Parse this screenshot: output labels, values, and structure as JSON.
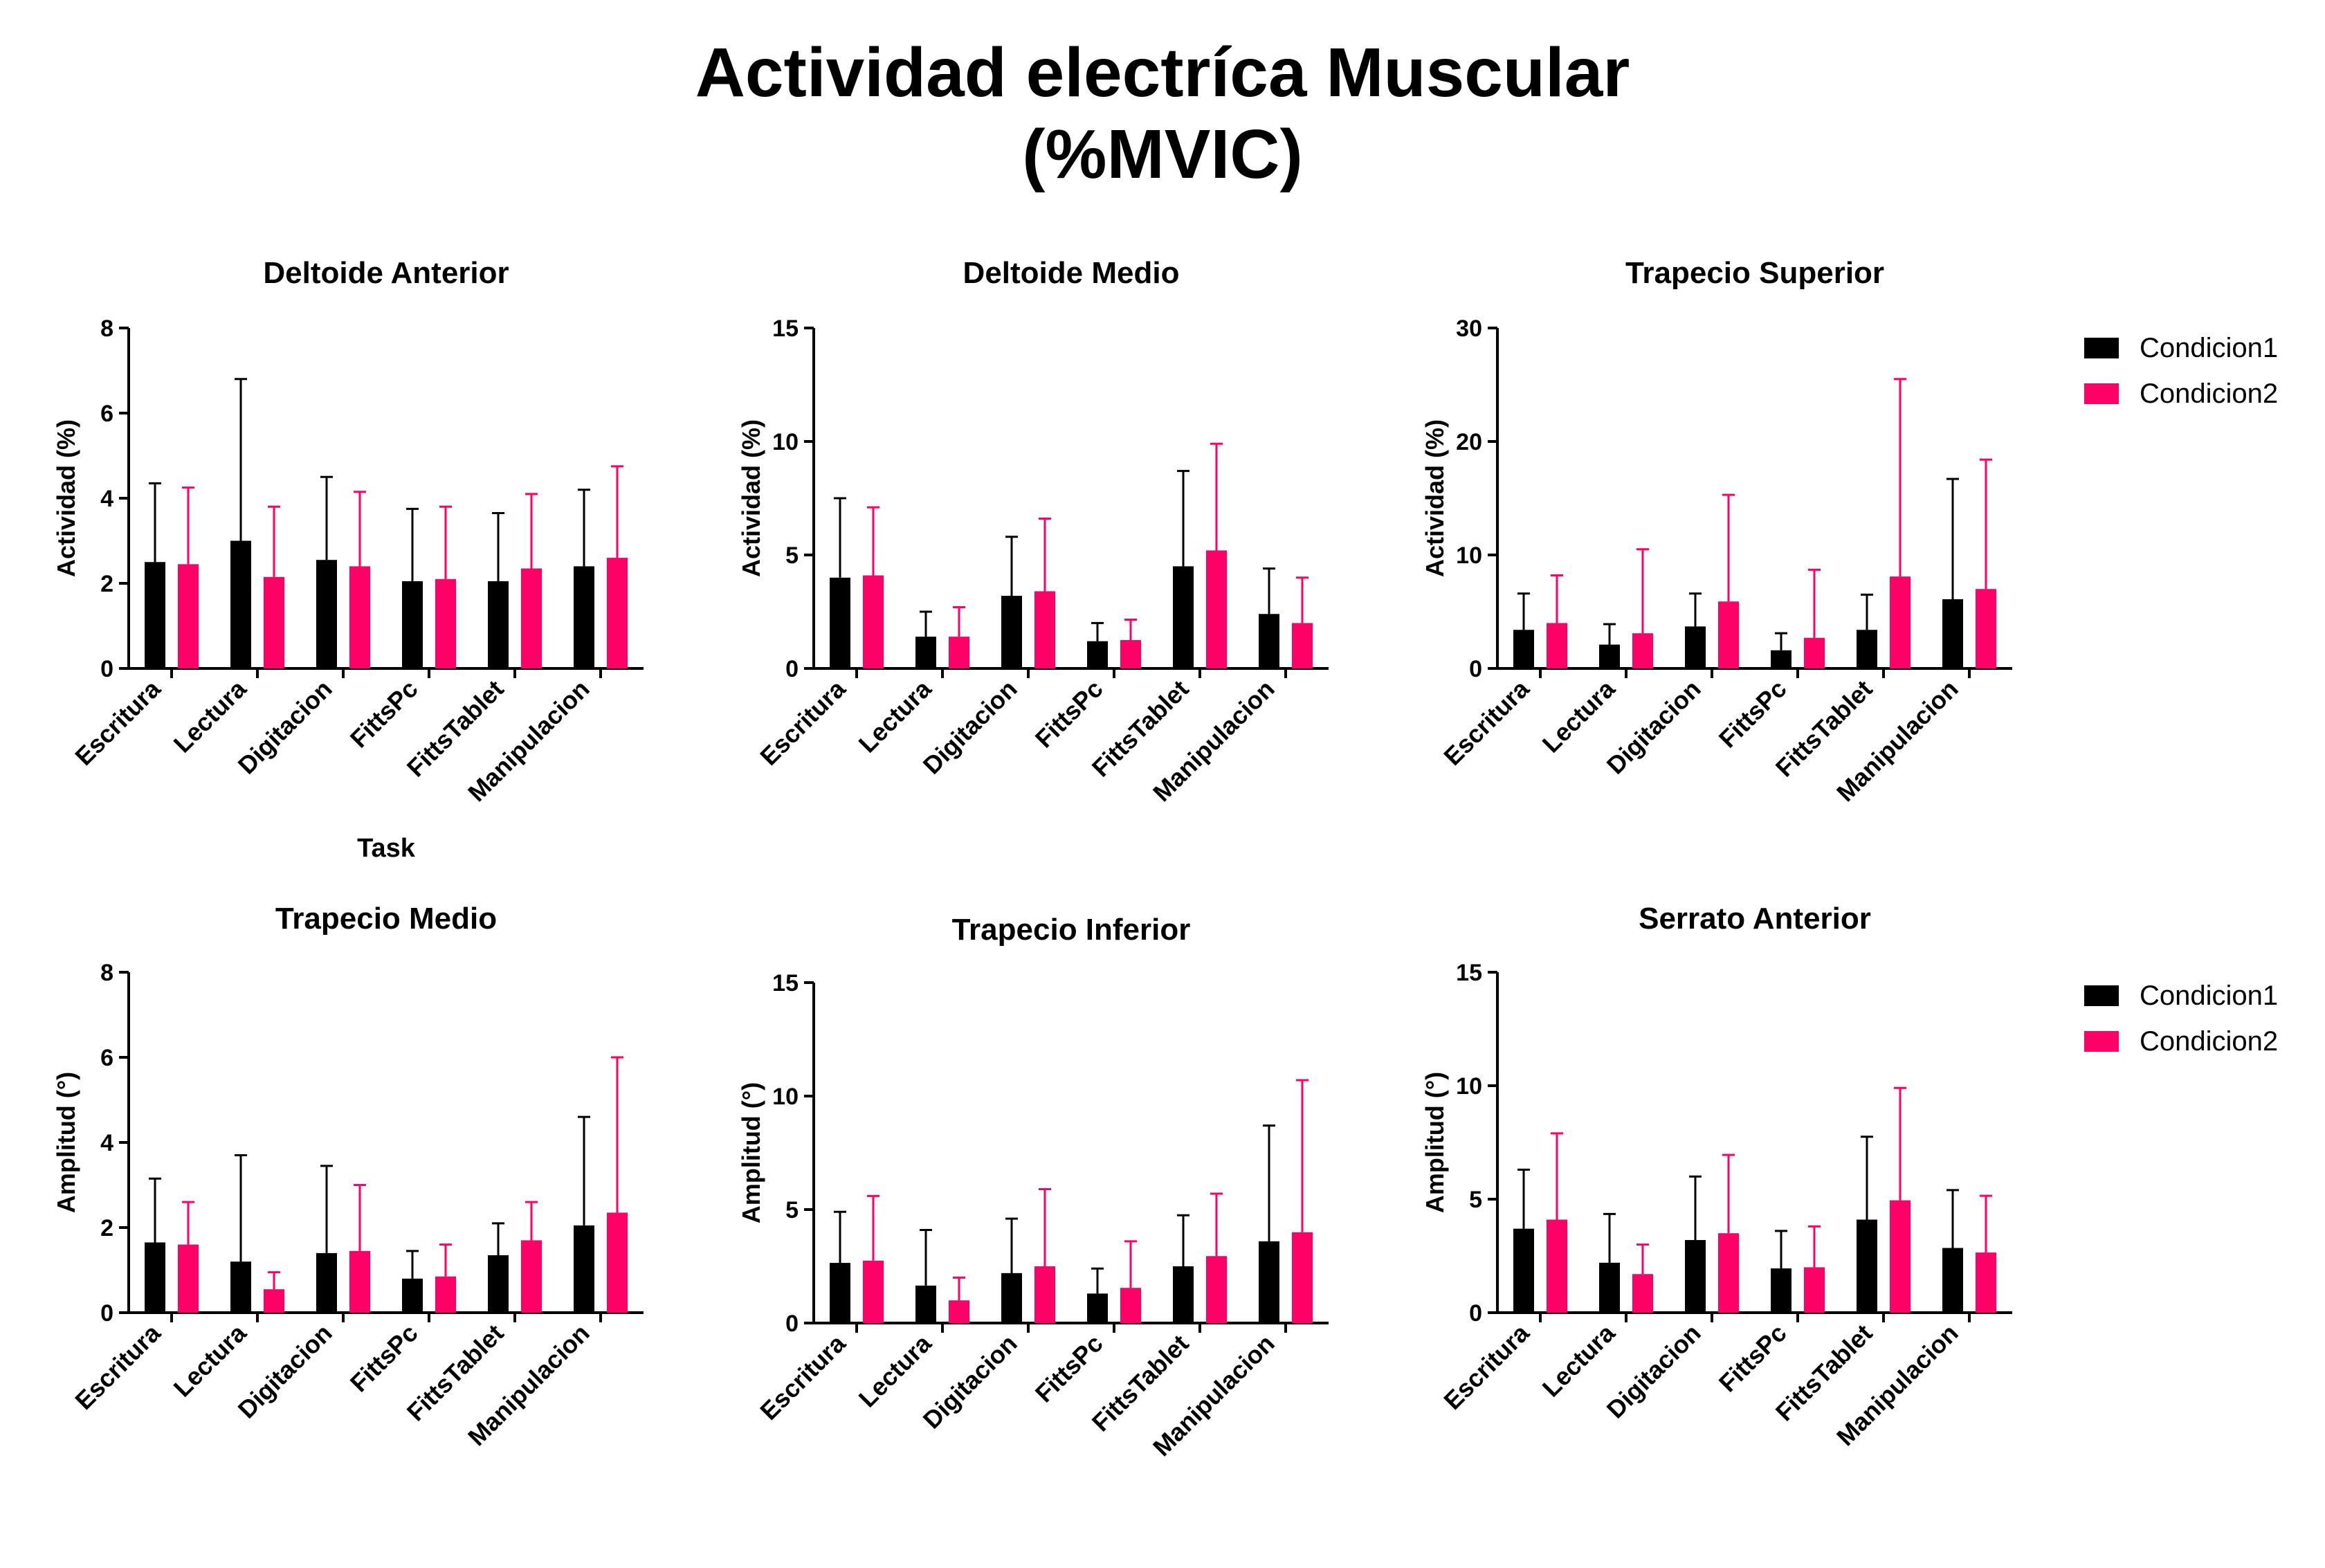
{
  "title": {
    "line1": "Actividad electríca Muscular",
    "line2": "(%MVIC)"
  },
  "colors": {
    "condicion1": "#000000",
    "condicion2": "#ff0066"
  },
  "legends": [
    {
      "items": [
        "Condicion1",
        "Condicion2"
      ]
    },
    {
      "items": [
        "Condicion1",
        "Condicion2"
      ]
    }
  ],
  "chart_data": [
    {
      "type": "bar",
      "title": "Deltoide Anterior",
      "ylabel": "Actividad (%)",
      "xlabel": "Task",
      "categories": [
        "Escritura",
        "Lectura",
        "Digitacion",
        "FittsPc",
        "FittsTablet",
        "Manipulacion"
      ],
      "ylim": [
        0,
        8
      ],
      "yticks": [
        0,
        2,
        4,
        6,
        8
      ],
      "series": [
        {
          "name": "Condicion1",
          "values": [
            2.5,
            3.0,
            2.55,
            2.05,
            2.05,
            2.4
          ],
          "error_upper": [
            4.35,
            6.8,
            4.5,
            3.75,
            3.65,
            4.2
          ]
        },
        {
          "name": "Condicion2",
          "values": [
            2.45,
            2.15,
            2.4,
            2.1,
            2.35,
            2.6
          ],
          "error_upper": [
            4.25,
            3.8,
            4.15,
            3.8,
            4.1,
            4.75
          ]
        }
      ]
    },
    {
      "type": "bar",
      "title": "Deltoide Medio",
      "ylabel": "Actividad (%)",
      "xlabel": "",
      "categories": [
        "Escritura",
        "Lectura",
        "Digitacion",
        "FittsPc",
        "FittsTablet",
        "Manipulacion"
      ],
      "ylim": [
        0,
        15
      ],
      "yticks": [
        0,
        5,
        10,
        15
      ],
      "series": [
        {
          "name": "Condicion1",
          "values": [
            4.0,
            1.4,
            3.2,
            1.2,
            4.5,
            2.4
          ],
          "error_upper": [
            7.5,
            2.5,
            5.8,
            2.0,
            8.7,
            4.4
          ]
        },
        {
          "name": "Condicion2",
          "values": [
            4.1,
            1.4,
            3.4,
            1.25,
            5.2,
            2.0
          ],
          "error_upper": [
            7.1,
            2.7,
            6.6,
            2.15,
            9.9,
            4.0
          ]
        }
      ]
    },
    {
      "type": "bar",
      "title": "Trapecio  Superior",
      "ylabel": "Actividad (%)",
      "xlabel": "",
      "categories": [
        "Escritura",
        "Lectura",
        "Digitacion",
        "FittsPc",
        "FittsTablet",
        "Manipulacion"
      ],
      "ylim": [
        0,
        30
      ],
      "yticks": [
        0,
        10,
        20,
        30
      ],
      "series": [
        {
          "name": "Condicion1",
          "values": [
            3.4,
            2.1,
            3.7,
            1.6,
            3.4,
            6.1
          ],
          "error_upper": [
            6.6,
            3.9,
            6.6,
            3.1,
            6.5,
            16.7
          ]
        },
        {
          "name": "Condicion2",
          "values": [
            4.0,
            3.1,
            5.9,
            2.7,
            8.1,
            7.0
          ],
          "error_upper": [
            8.2,
            10.5,
            15.3,
            8.7,
            25.5,
            18.4
          ]
        }
      ]
    },
    {
      "type": "bar",
      "title": "Trapecio  Medio",
      "ylabel": "Amplitud (°)",
      "xlabel": "",
      "categories": [
        "Escritura",
        "Lectura",
        "Digitacion",
        "FittsPc",
        "FittsTablet",
        "Manipulacion"
      ],
      "ylim": [
        0,
        8
      ],
      "yticks": [
        0,
        2,
        4,
        6,
        8
      ],
      "series": [
        {
          "name": "Condicion1",
          "values": [
            1.65,
            1.2,
            1.4,
            0.8,
            1.35,
            2.05
          ],
          "error_upper": [
            3.15,
            3.7,
            3.45,
            1.45,
            2.1,
            4.6
          ]
        },
        {
          "name": "Condicion2",
          "values": [
            1.6,
            0.55,
            1.45,
            0.85,
            1.7,
            2.35
          ],
          "error_upper": [
            2.6,
            0.95,
            3.0,
            1.6,
            2.6,
            6.0
          ]
        }
      ]
    },
    {
      "type": "bar",
      "title": "Trapecio Inferior",
      "ylabel": "Amplitud (°)",
      "xlabel": "",
      "categories": [
        "Escritura",
        "Lectura",
        "Digitacion",
        "FittsPc",
        "FittsTablet",
        "Manipulacion"
      ],
      "ylim": [
        0,
        15
      ],
      "yticks": [
        0,
        5,
        10,
        15
      ],
      "series": [
        {
          "name": "Condicion1",
          "values": [
            2.65,
            1.65,
            2.2,
            1.3,
            2.5,
            3.6
          ],
          "error_upper": [
            4.9,
            4.1,
            4.6,
            2.4,
            4.75,
            8.7
          ]
        },
        {
          "name": "Condicion2",
          "values": [
            2.75,
            1.0,
            2.5,
            1.55,
            2.95,
            4.0
          ],
          "error_upper": [
            5.6,
            2.0,
            5.9,
            3.6,
            5.7,
            10.7
          ]
        }
      ]
    },
    {
      "type": "bar",
      "title": "Serrato Anterior",
      "ylabel": "Amplitud (°)",
      "xlabel": "",
      "categories": [
        "Escritura",
        "Lectura",
        "Digitacion",
        "FittsPc",
        "FittsTablet",
        "Manipulacion"
      ],
      "ylim": [
        0,
        15
      ],
      "yticks": [
        0,
        5,
        10,
        15
      ],
      "series": [
        {
          "name": "Condicion1",
          "values": [
            3.7,
            2.2,
            3.2,
            1.95,
            4.1,
            2.85
          ],
          "error_upper": [
            6.3,
            4.35,
            6.0,
            3.6,
            7.75,
            5.4
          ]
        },
        {
          "name": "Condicion2",
          "values": [
            4.1,
            1.7,
            3.5,
            2.0,
            4.95,
            2.65
          ],
          "error_upper": [
            7.9,
            3.0,
            6.95,
            3.8,
            9.9,
            5.15
          ]
        }
      ]
    }
  ]
}
